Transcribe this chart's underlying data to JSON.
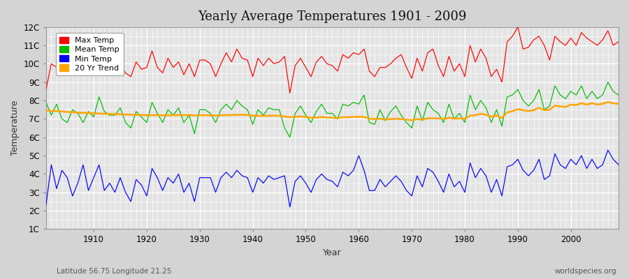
{
  "title": "Yearly Average Temperatures 1901 - 2009",
  "xlabel": "Year",
  "ylabel": "Temperature",
  "subtitle_left": "Latitude 56.75 Longitude 21.25",
  "subtitle_right": "worldspecies.org",
  "years": [
    1901,
    1902,
    1903,
    1904,
    1905,
    1906,
    1907,
    1908,
    1909,
    1910,
    1911,
    1912,
    1913,
    1914,
    1915,
    1916,
    1917,
    1918,
    1919,
    1920,
    1921,
    1922,
    1923,
    1924,
    1925,
    1926,
    1927,
    1928,
    1929,
    1930,
    1931,
    1932,
    1933,
    1934,
    1935,
    1936,
    1937,
    1938,
    1939,
    1940,
    1941,
    1942,
    1943,
    1944,
    1945,
    1946,
    1947,
    1948,
    1949,
    1950,
    1951,
    1952,
    1953,
    1954,
    1955,
    1956,
    1957,
    1958,
    1959,
    1960,
    1961,
    1962,
    1963,
    1964,
    1965,
    1966,
    1967,
    1968,
    1969,
    1970,
    1971,
    1972,
    1973,
    1974,
    1975,
    1976,
    1977,
    1978,
    1979,
    1980,
    1981,
    1982,
    1983,
    1984,
    1985,
    1986,
    1987,
    1988,
    1989,
    1990,
    1991,
    1992,
    1993,
    1994,
    1995,
    1996,
    1997,
    1998,
    1999,
    2000,
    2001,
    2002,
    2003,
    2004,
    2005,
    2006,
    2007,
    2008,
    2009
  ],
  "max_temp": [
    8.6,
    10.0,
    9.8,
    10.2,
    10.1,
    9.7,
    10.0,
    9.9,
    9.5,
    9.6,
    11.1,
    10.1,
    10.0,
    10.3,
    10.0,
    9.5,
    9.3,
    10.1,
    9.7,
    9.8,
    10.7,
    9.8,
    9.5,
    10.3,
    9.8,
    10.1,
    9.4,
    10.0,
    9.3,
    10.2,
    10.2,
    10.0,
    9.3,
    10.0,
    10.6,
    10.1,
    10.8,
    10.3,
    10.2,
    9.3,
    10.3,
    9.9,
    10.3,
    10.0,
    10.1,
    10.4,
    8.4,
    9.9,
    10.3,
    9.8,
    9.3,
    10.1,
    10.4,
    10.0,
    9.9,
    9.6,
    10.5,
    10.3,
    10.6,
    10.5,
    10.8,
    9.6,
    9.3,
    9.8,
    9.8,
    10.0,
    10.3,
    10.5,
    9.8,
    9.2,
    10.3,
    9.6,
    10.6,
    10.8,
    9.9,
    9.3,
    10.4,
    9.6,
    10.0,
    9.3,
    11.0,
    10.1,
    10.8,
    10.3,
    9.3,
    9.7,
    9.0,
    11.2,
    11.5,
    12.0,
    10.8,
    10.9,
    11.3,
    11.5,
    11.0,
    10.2,
    11.5,
    11.2,
    11.0,
    11.4,
    11.0,
    11.7,
    11.4,
    11.2,
    11.0,
    11.3,
    11.8,
    11.0,
    11.2
  ],
  "mean_temp": [
    7.9,
    7.2,
    7.8,
    7.0,
    6.8,
    7.5,
    7.3,
    6.8,
    7.4,
    7.1,
    8.2,
    7.4,
    7.2,
    7.2,
    7.6,
    6.8,
    6.5,
    7.4,
    7.1,
    6.8,
    7.9,
    7.3,
    6.8,
    7.5,
    7.2,
    7.6,
    6.8,
    7.2,
    6.2,
    7.5,
    7.5,
    7.3,
    6.8,
    7.5,
    7.8,
    7.5,
    8.0,
    7.7,
    7.5,
    6.7,
    7.5,
    7.2,
    7.6,
    7.5,
    7.5,
    6.5,
    6.0,
    7.3,
    7.7,
    7.2,
    6.8,
    7.4,
    7.8,
    7.3,
    7.3,
    7.0,
    7.8,
    7.7,
    7.9,
    7.8,
    8.3,
    6.8,
    6.7,
    7.5,
    6.9,
    7.4,
    7.7,
    7.2,
    6.8,
    6.5,
    7.7,
    6.9,
    7.9,
    7.5,
    7.3,
    6.8,
    7.8,
    7.0,
    7.3,
    6.8,
    8.3,
    7.5,
    8.0,
    7.6,
    6.8,
    7.5,
    6.6,
    8.2,
    8.3,
    8.6,
    8.0,
    7.7,
    8.0,
    8.6,
    7.5,
    7.7,
    8.8,
    8.3,
    8.1,
    8.5,
    8.3,
    8.8,
    8.1,
    8.5,
    8.1,
    8.3,
    9.0,
    8.5,
    8.3
  ],
  "min_temp": [
    2.3,
    4.5,
    3.2,
    4.2,
    3.8,
    2.8,
    3.5,
    4.5,
    3.1,
    3.8,
    4.5,
    3.1,
    3.5,
    3.0,
    3.8,
    3.0,
    2.5,
    3.7,
    3.4,
    2.8,
    4.3,
    3.8,
    3.1,
    3.8,
    3.5,
    4.0,
    3.0,
    3.5,
    2.5,
    3.8,
    3.8,
    3.8,
    3.0,
    3.8,
    4.1,
    3.8,
    4.2,
    3.9,
    3.8,
    3.0,
    3.8,
    3.5,
    3.9,
    3.7,
    3.8,
    3.9,
    2.2,
    3.6,
    3.9,
    3.5,
    3.0,
    3.7,
    4.0,
    3.7,
    3.6,
    3.3,
    4.1,
    3.9,
    4.2,
    5.0,
    4.2,
    3.1,
    3.1,
    3.7,
    3.3,
    3.6,
    3.9,
    3.6,
    3.1,
    2.8,
    3.9,
    3.3,
    4.3,
    4.1,
    3.6,
    3.0,
    4.0,
    3.3,
    3.6,
    3.0,
    4.6,
    3.8,
    4.3,
    3.9,
    3.0,
    3.7,
    2.8,
    4.4,
    4.5,
    4.8,
    4.2,
    3.9,
    4.2,
    4.8,
    3.7,
    3.9,
    5.1,
    4.5,
    4.3,
    4.8,
    4.5,
    5.0,
    4.3,
    4.8,
    4.3,
    4.5,
    5.3,
    4.8,
    4.5
  ],
  "trend": [
    7.45,
    7.44,
    7.43,
    7.4,
    7.38,
    7.36,
    7.34,
    7.33,
    7.32,
    7.3,
    7.29,
    7.28,
    7.27,
    7.26,
    7.25,
    7.24,
    7.23,
    7.22,
    7.21,
    7.2,
    7.2,
    7.2,
    7.19,
    7.2,
    7.2,
    7.21,
    7.2,
    7.21,
    7.18,
    7.2,
    7.2,
    7.19,
    7.18,
    7.2,
    7.2,
    7.21,
    7.22,
    7.22,
    7.21,
    7.17,
    7.17,
    7.16,
    7.17,
    7.17,
    7.17,
    7.13,
    7.09,
    7.11,
    7.13,
    7.11,
    7.06,
    7.07,
    7.1,
    7.07,
    7.06,
    7.04,
    7.09,
    7.09,
    7.11,
    7.11,
    7.11,
    7.01,
    6.99,
    7.01,
    6.96,
    6.99,
    7.01,
    6.99,
    6.96,
    6.93,
    6.99,
    6.96,
    7.03,
    7.03,
    7.03,
    6.99,
    7.06,
    7.01,
    7.03,
    6.99,
    7.18,
    7.2,
    7.28,
    7.22,
    7.12,
    7.18,
    7.05,
    7.35,
    7.42,
    7.53,
    7.47,
    7.43,
    7.47,
    7.6,
    7.47,
    7.5,
    7.72,
    7.68,
    7.65,
    7.78,
    7.75,
    7.85,
    7.78,
    7.85,
    7.78,
    7.82,
    7.92,
    7.85,
    7.82
  ],
  "max_color": "#ff0000",
  "mean_color": "#00bb00",
  "min_color": "#0000ff",
  "trend_color": "#ffa500",
  "fig_bg_color": "#d4d4d4",
  "plot_bg_color": "#e4e4e4",
  "grid_color": "#ffffff",
  "ylim_min": 1,
  "ylim_max": 12,
  "yticks": [
    1,
    2,
    3,
    4,
    5,
    6,
    7,
    8,
    9,
    10,
    11,
    12
  ],
  "ytick_labels": [
    "1C",
    "2C",
    "3C",
    "4C",
    "5C",
    "6C",
    "7C",
    "8C",
    "9C",
    "10C",
    "11C",
    "12C"
  ],
  "xtick_major": [
    1910,
    1920,
    1930,
    1940,
    1950,
    1960,
    1970,
    1980,
    1990,
    2000
  ],
  "title_fontsize": 13,
  "axis_label_fontsize": 9,
  "tick_fontsize": 8.5,
  "legend_fontsize": 8
}
